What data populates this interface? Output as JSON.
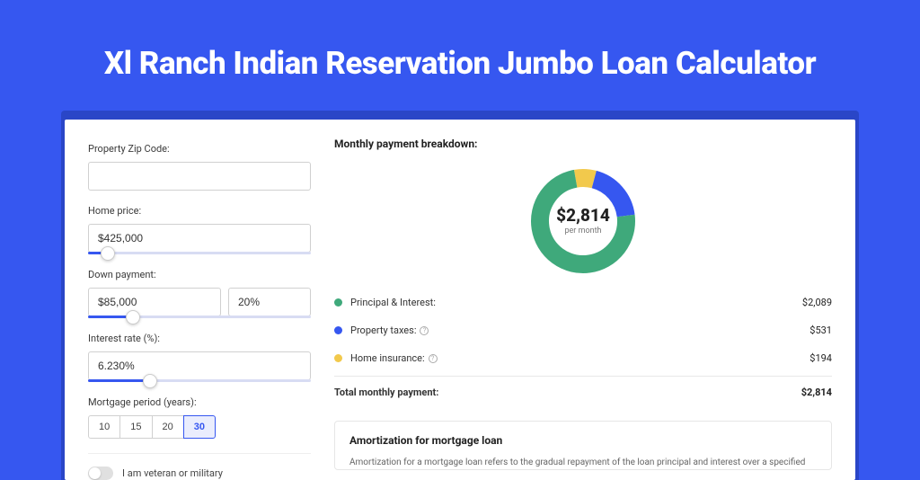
{
  "page_title": "Xl Ranch Indian Reservation Jumbo Loan Calculator",
  "colors": {
    "page_bg": "#3657f0",
    "card_shadow": "#2a46c7",
    "accent": "#3657f0",
    "principal": "#3fa97b",
    "taxes": "#3657f0",
    "insurance": "#f2c94c"
  },
  "form": {
    "zip_label": "Property Zip Code:",
    "zip_value": "",
    "home_price_label": "Home price:",
    "home_price_value": "$425,000",
    "home_price_slider_pct": 9,
    "down_payment_label": "Down payment:",
    "down_payment_value": "$85,000",
    "down_payment_pct_value": "20%",
    "down_payment_slider_pct": 20,
    "interest_label": "Interest rate (%):",
    "interest_value": "6.230%",
    "interest_slider_pct": 28,
    "period_label": "Mortgage period (years):",
    "periods": [
      "10",
      "15",
      "20",
      "30"
    ],
    "period_selected": "30",
    "veteran_label": "I am veteran or military",
    "veteran_on": false
  },
  "breakdown": {
    "title": "Monthly payment breakdown:",
    "center_value": "$2,814",
    "center_sub": "per month",
    "rows": [
      {
        "color": "#3fa97b",
        "label": "Principal & Interest:",
        "info": false,
        "value": "$2,089",
        "pct": 74.2
      },
      {
        "color": "#3657f0",
        "label": "Property taxes:",
        "info": true,
        "value": "$531",
        "pct": 18.9
      },
      {
        "color": "#f2c94c",
        "label": "Home insurance:",
        "info": true,
        "value": "$194",
        "pct": 6.9
      }
    ],
    "total_label": "Total monthly payment:",
    "total_value": "$2,814"
  },
  "amort": {
    "title": "Amortization for mortgage loan",
    "text": "Amortization for a mortgage loan refers to the gradual repayment of the loan principal and interest over a specified"
  }
}
